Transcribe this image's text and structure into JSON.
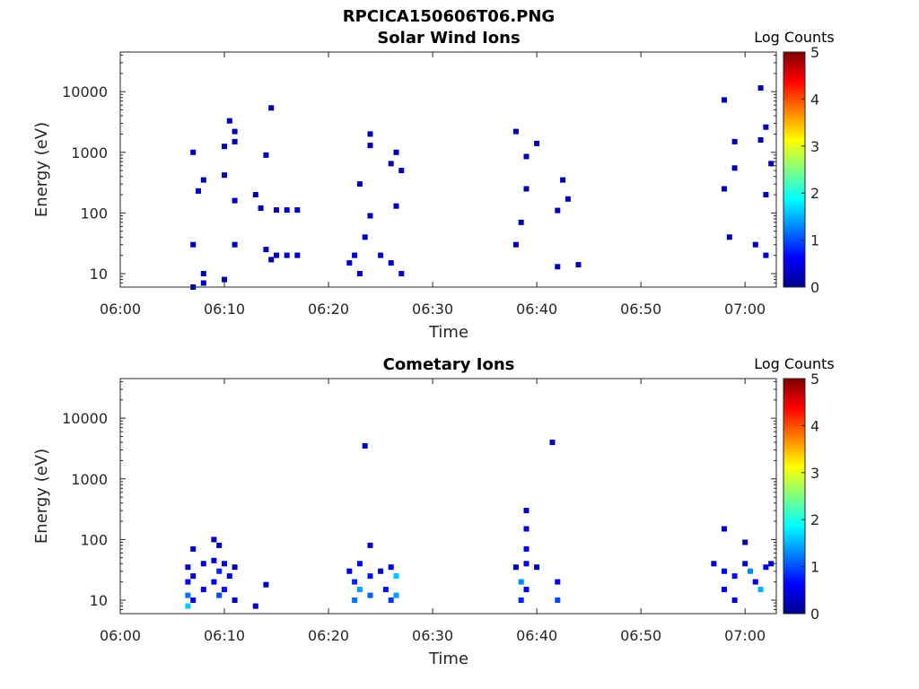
{
  "figure_title": "RPCICA150606T06.PNG",
  "colormap": [
    "#00008f",
    "#0000ff",
    "#00ffff",
    "#ffff00",
    "#ff0000",
    "#800000"
  ],
  "chart_data": [
    {
      "type": "heatmap",
      "title": "Solar Wind Ions",
      "xlabel": "Time",
      "ylabel": "Energy (eV)",
      "yscale": "log",
      "ylim": [
        6,
        45000
      ],
      "xlim": [
        "06:00",
        "07:03"
      ],
      "x_ticks": [
        "06:00",
        "06:10",
        "06:20",
        "06:30",
        "06:40",
        "06:50",
        "07:00"
      ],
      "y_ticks": [
        "10",
        "100",
        "1000",
        "10000"
      ],
      "colorbar": {
        "label": "Log Counts",
        "min": 0,
        "max": 5,
        "ticks": [
          "0",
          "1",
          "2",
          "3",
          "4",
          "5"
        ]
      },
      "cells": [
        {
          "t": "06:07",
          "e": 1000,
          "v": 0.2
        },
        {
          "t": "06:07",
          "e": 30,
          "v": 0.2
        },
        {
          "t": "06:07",
          "e": 6,
          "v": 0.2
        },
        {
          "t": "06:07.5",
          "e": 230,
          "v": 0.2
        },
        {
          "t": "06:08",
          "e": 350,
          "v": 0.2
        },
        {
          "t": "06:08",
          "e": 10,
          "v": 0.2
        },
        {
          "t": "06:08",
          "e": 7,
          "v": 0.2
        },
        {
          "t": "06:10",
          "e": 1250,
          "v": 0.2
        },
        {
          "t": "06:10",
          "e": 420,
          "v": 0.2
        },
        {
          "t": "06:10",
          "e": 8,
          "v": 0.2
        },
        {
          "t": "06:10.5",
          "e": 3300,
          "v": 0.2
        },
        {
          "t": "06:11",
          "e": 2200,
          "v": 0.2
        },
        {
          "t": "06:11",
          "e": 1500,
          "v": 0.2
        },
        {
          "t": "06:11",
          "e": 160,
          "v": 0.2
        },
        {
          "t": "06:11",
          "e": 30,
          "v": 0.2
        },
        {
          "t": "06:13",
          "e": 200,
          "v": 0.2
        },
        {
          "t": "06:13.5",
          "e": 120,
          "v": 0.2
        },
        {
          "t": "06:14",
          "e": 900,
          "v": 0.2
        },
        {
          "t": "06:14",
          "e": 25,
          "v": 0.2
        },
        {
          "t": "06:14.5",
          "e": 5400,
          "v": 0.2
        },
        {
          "t": "06:14.5",
          "e": 17,
          "v": 0.2
        },
        {
          "t": "06:15",
          "e": 112,
          "v": 0.3
        },
        {
          "t": "06:16",
          "e": 112,
          "v": 0.3
        },
        {
          "t": "06:17",
          "e": 112,
          "v": 0.3
        },
        {
          "t": "06:15",
          "e": 20,
          "v": 0.3
        },
        {
          "t": "06:16",
          "e": 20,
          "v": 0.3
        },
        {
          "t": "06:17",
          "e": 20,
          "v": 0.3
        },
        {
          "t": "06:22",
          "e": 15,
          "v": 0.3
        },
        {
          "t": "06:22.5",
          "e": 20,
          "v": 0.3
        },
        {
          "t": "06:23",
          "e": 10,
          "v": 0.3
        },
        {
          "t": "06:23",
          "e": 300,
          "v": 0.2
        },
        {
          "t": "06:23.5",
          "e": 40,
          "v": 0.2
        },
        {
          "t": "06:24",
          "e": 1300,
          "v": 0.2
        },
        {
          "t": "06:24",
          "e": 2000,
          "v": 0.2
        },
        {
          "t": "06:24",
          "e": 90,
          "v": 0.2
        },
        {
          "t": "06:25",
          "e": 20,
          "v": 0.3
        },
        {
          "t": "06:26",
          "e": 650,
          "v": 0.2
        },
        {
          "t": "06:26",
          "e": 15,
          "v": 0.3
        },
        {
          "t": "06:26.5",
          "e": 1000,
          "v": 0.2
        },
        {
          "t": "06:26.5",
          "e": 130,
          "v": 0.2
        },
        {
          "t": "06:27",
          "e": 500,
          "v": 0.2
        },
        {
          "t": "06:27",
          "e": 10,
          "v": 0.3
        },
        {
          "t": "06:38",
          "e": 2200,
          "v": 0.2
        },
        {
          "t": "06:38",
          "e": 30,
          "v": 0.2
        },
        {
          "t": "06:38.5",
          "e": 70,
          "v": 0.2
        },
        {
          "t": "06:39",
          "e": 850,
          "v": 0.2
        },
        {
          "t": "06:39",
          "e": 250,
          "v": 0.2
        },
        {
          "t": "06:40",
          "e": 1400,
          "v": 0.2
        },
        {
          "t": "06:42",
          "e": 13,
          "v": 0.2
        },
        {
          "t": "06:42",
          "e": 110,
          "v": 0.2
        },
        {
          "t": "06:42.5",
          "e": 350,
          "v": 0.2
        },
        {
          "t": "06:43",
          "e": 170,
          "v": 0.2
        },
        {
          "t": "06:44",
          "e": 14,
          "v": 0.2
        },
        {
          "t": "06:58",
          "e": 7300,
          "v": 0.2
        },
        {
          "t": "06:58",
          "e": 250,
          "v": 0.2
        },
        {
          "t": "06:58.5",
          "e": 40,
          "v": 0.2
        },
        {
          "t": "06:59",
          "e": 1500,
          "v": 0.2
        },
        {
          "t": "06:59",
          "e": 550,
          "v": 0.2
        },
        {
          "t": "07:01",
          "e": 30,
          "v": 0.2
        },
        {
          "t": "07:01.5",
          "e": 11500,
          "v": 0.2
        },
        {
          "t": "07:01.5",
          "e": 1600,
          "v": 0.2
        },
        {
          "t": "07:02",
          "e": 2600,
          "v": 0.2
        },
        {
          "t": "07:02",
          "e": 200,
          "v": 0.2
        },
        {
          "t": "07:02",
          "e": 20,
          "v": 0.3
        },
        {
          "t": "07:02.5",
          "e": 650,
          "v": 0.2
        }
      ]
    },
    {
      "type": "heatmap",
      "title": "Cometary Ions",
      "xlabel": "Time",
      "ylabel": "Energy (eV)",
      "yscale": "log",
      "ylim": [
        6,
        45000
      ],
      "xlim": [
        "06:00",
        "07:03"
      ],
      "x_ticks": [
        "06:00",
        "06:10",
        "06:20",
        "06:30",
        "06:40",
        "06:50",
        "07:00"
      ],
      "y_ticks": [
        "10",
        "100",
        "1000",
        "10000"
      ],
      "colorbar": {
        "label": "Log Counts",
        "min": 0,
        "max": 5,
        "ticks": [
          "0",
          "1",
          "2",
          "3",
          "4",
          "5"
        ]
      },
      "cells": [
        {
          "t": "06:06.5",
          "e": 35,
          "v": 0.3
        },
        {
          "t": "06:06.5",
          "e": 20,
          "v": 0.6
        },
        {
          "t": "06:06.5",
          "e": 12,
          "v": 1.2
        },
        {
          "t": "06:06.5",
          "e": 8,
          "v": 1.6
        },
        {
          "t": "06:07",
          "e": 70,
          "v": 0.3
        },
        {
          "t": "06:07",
          "e": 25,
          "v": 0.4
        },
        {
          "t": "06:07",
          "e": 10,
          "v": 0.5
        },
        {
          "t": "06:08",
          "e": 40,
          "v": 0.3
        },
        {
          "t": "06:08",
          "e": 15,
          "v": 0.4
        },
        {
          "t": "06:09",
          "e": 100,
          "v": 0.3
        },
        {
          "t": "06:09",
          "e": 45,
          "v": 0.5
        },
        {
          "t": "06:09",
          "e": 20,
          "v": 0.6
        },
        {
          "t": "06:09.5",
          "e": 80,
          "v": 0.3
        },
        {
          "t": "06:09.5",
          "e": 30,
          "v": 0.8
        },
        {
          "t": "06:09.5",
          "e": 12,
          "v": 1.0
        },
        {
          "t": "06:10",
          "e": 40,
          "v": 0.4
        },
        {
          "t": "06:10",
          "e": 15,
          "v": 0.7
        },
        {
          "t": "06:10.5",
          "e": 25,
          "v": 0.4
        },
        {
          "t": "06:11",
          "e": 35,
          "v": 0.3
        },
        {
          "t": "06:11",
          "e": 10,
          "v": 0.3
        },
        {
          "t": "06:13",
          "e": 8,
          "v": 0.3
        },
        {
          "t": "06:14",
          "e": 18,
          "v": 0.3
        },
        {
          "t": "06:22",
          "e": 30,
          "v": 0.4
        },
        {
          "t": "06:22.5",
          "e": 20,
          "v": 0.8
        },
        {
          "t": "06:22.5",
          "e": 10,
          "v": 1.2
        },
        {
          "t": "06:23",
          "e": 40,
          "v": 0.6
        },
        {
          "t": "06:23",
          "e": 15,
          "v": 1.4
        },
        {
          "t": "06:23.5",
          "e": 3500,
          "v": 0.2
        },
        {
          "t": "06:24",
          "e": 80,
          "v": 0.3
        },
        {
          "t": "06:24",
          "e": 25,
          "v": 0.7
        },
        {
          "t": "06:24",
          "e": 12,
          "v": 1.1
        },
        {
          "t": "06:25",
          "e": 30,
          "v": 0.3
        },
        {
          "t": "06:25.5",
          "e": 15,
          "v": 0.7
        },
        {
          "t": "06:26",
          "e": 35,
          "v": 0.5
        },
        {
          "t": "06:26",
          "e": 10,
          "v": 0.9
        },
        {
          "t": "06:26.5",
          "e": 25,
          "v": 1.6
        },
        {
          "t": "06:26.5",
          "e": 12,
          "v": 1.4
        },
        {
          "t": "06:38",
          "e": 35,
          "v": 0.3
        },
        {
          "t": "06:38.5",
          "e": 20,
          "v": 1.3
        },
        {
          "t": "06:38.5",
          "e": 10,
          "v": 0.8
        },
        {
          "t": "06:39",
          "e": 300,
          "v": 0.2
        },
        {
          "t": "06:39",
          "e": 150,
          "v": 0.4
        },
        {
          "t": "06:39",
          "e": 70,
          "v": 0.5
        },
        {
          "t": "06:39",
          "e": 40,
          "v": 0.4
        },
        {
          "t": "06:39",
          "e": 15,
          "v": 0.6
        },
        {
          "t": "06:40",
          "e": 35,
          "v": 0.3
        },
        {
          "t": "06:41.5",
          "e": 4000,
          "v": 0.2
        },
        {
          "t": "06:42",
          "e": 20,
          "v": 0.5
        },
        {
          "t": "06:42",
          "e": 10,
          "v": 1.0
        },
        {
          "t": "06:57",
          "e": 40,
          "v": 0.3
        },
        {
          "t": "06:58",
          "e": 150,
          "v": 0.3
        },
        {
          "t": "06:58",
          "e": 30,
          "v": 0.5
        },
        {
          "t": "06:58",
          "e": 15,
          "v": 0.6
        },
        {
          "t": "06:59",
          "e": 25,
          "v": 0.7
        },
        {
          "t": "06:59",
          "e": 10,
          "v": 0.4
        },
        {
          "t": "07:00",
          "e": 90,
          "v": 0.2
        },
        {
          "t": "07:00",
          "e": 40,
          "v": 0.4
        },
        {
          "t": "07:00.5",
          "e": 30,
          "v": 1.3
        },
        {
          "t": "07:01",
          "e": 20,
          "v": 0.5
        },
        {
          "t": "07:01.5",
          "e": 15,
          "v": 1.5
        },
        {
          "t": "07:02",
          "e": 35,
          "v": 0.5
        },
        {
          "t": "07:02.5",
          "e": 40,
          "v": 0.3
        }
      ]
    }
  ]
}
